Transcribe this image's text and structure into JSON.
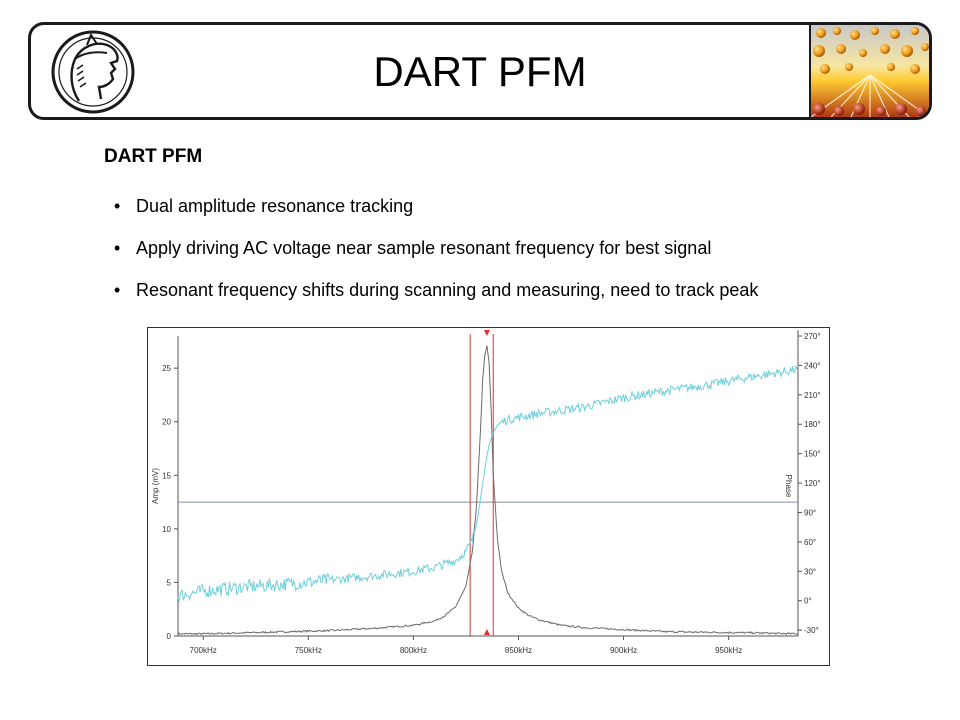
{
  "slide": {
    "title": "DART PFM",
    "heading": "DART PFM",
    "bullets": [
      "Dual amplitude resonance tracking",
      "Apply driving AC voltage near sample resonant frequency for best signal",
      "Resonant frequency shifts during scanning and measuring, need to track peak"
    ],
    "bullet_symbol": "•",
    "logo_icon": "minerva-head-logo",
    "banner_image": "crystal-lattice-image"
  },
  "chart_data": {
    "type": "line",
    "xlabel": "",
    "ylabel_left": "Amp (mV)",
    "ylabel_right": "Phase",
    "xlim": [
      688,
      983
    ],
    "ylim_left": [
      0,
      28
    ],
    "ylim_right": [
      -36,
      270
    ],
    "x_ticks": [
      700,
      750,
      800,
      850,
      900,
      950
    ],
    "x_tick_labels": [
      "700kHz",
      "750kHz",
      "800kHz",
      "850kHz",
      "900kHz",
      "950kHz"
    ],
    "y_ticks_left": [
      0,
      5,
      10,
      15,
      20,
      25
    ],
    "y_tick_labels_left": [
      "0",
      "5",
      "10",
      "15",
      "20",
      "25"
    ],
    "y_ticks_right": [
      -30,
      0,
      30,
      60,
      90,
      120,
      150,
      180,
      210,
      240,
      270
    ],
    "y_tick_labels_right": [
      "-30°",
      "0°",
      "30°",
      "60°",
      "90°",
      "120°",
      "150°",
      "180°",
      "210°",
      "240°",
      "270°"
    ],
    "colors": {
      "amplitude": "#6b6b6b",
      "phase": "#6fd0dc",
      "markers": "#e03030",
      "reference": "#7f8fa8"
    },
    "series": [
      {
        "key": "amplitude",
        "axis": "left",
        "x": [
          688,
          700,
          720,
          740,
          760,
          780,
          800,
          810,
          815,
          820,
          825,
          828,
          830,
          832,
          833,
          834,
          835,
          836,
          837,
          838,
          840,
          842,
          845,
          850,
          855,
          860,
          870,
          880,
          900,
          920,
          940,
          960,
          983
        ],
        "y": [
          0.2,
          0.2,
          0.3,
          0.4,
          0.5,
          0.7,
          1.0,
          1.4,
          1.9,
          2.7,
          4.6,
          7.8,
          12.0,
          19.5,
          24.0,
          26.2,
          27.1,
          25.5,
          21.0,
          15.0,
          9.0,
          6.0,
          4.0,
          2.6,
          1.9,
          1.5,
          1.0,
          0.8,
          0.6,
          0.4,
          0.35,
          0.3,
          0.2
        ],
        "noise": 0.08
      },
      {
        "key": "phase",
        "axis": "right",
        "x": [
          688,
          700,
          720,
          740,
          760,
          780,
          800,
          810,
          820,
          825,
          828,
          830,
          832,
          834,
          836,
          838,
          840,
          842,
          845,
          850,
          860,
          880,
          900,
          920,
          940,
          960,
          983
        ],
        "y": [
          5,
          10,
          14,
          17,
          21,
          25,
          30,
          34,
          41,
          50,
          62,
          78,
          105,
          135,
          158,
          172,
          179,
          182,
          185,
          187,
          191,
          197,
          207,
          214,
          220,
          228,
          236
        ],
        "noise": 5
      }
    ],
    "markers": {
      "x": [
        827,
        838
      ],
      "peak_x": 835
    },
    "reference_line_left": 12.5
  }
}
